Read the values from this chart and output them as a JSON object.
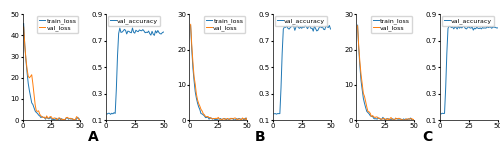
{
  "n_epochs": 50,
  "subplots": [
    {
      "type": "loss",
      "label_A": "train_loss",
      "label_B": "val_loss",
      "ylim": [
        0,
        50
      ],
      "yticks": [
        0,
        10,
        20,
        30,
        40,
        50
      ],
      "xlim": [
        0,
        50
      ],
      "train_y0": 45,
      "val_y0": 43,
      "val_bump_x": 8,
      "val_bump_y": 35,
      "decay_fast": 12,
      "floor": 0.5,
      "noise_train": 0.2,
      "noise_val": 0.4,
      "color_train": "#1f77b4",
      "color_val": "#ff7f0e"
    },
    {
      "type": "accuracy",
      "label": "val_accuracy",
      "ylim": [
        0.1,
        0.9
      ],
      "yticks": [
        0.1,
        0.3,
        0.5,
        0.7,
        0.9
      ],
      "xlim": [
        0,
        50
      ],
      "low_val": 0.15,
      "jump_at": 9,
      "high_val": 0.77,
      "noise_high": 0.015,
      "color": "#1f77b4"
    },
    {
      "type": "loss",
      "label_A": "train_loss",
      "label_B": "val_loss",
      "ylim": [
        0,
        30
      ],
      "yticks": [
        0,
        10,
        20,
        30
      ],
      "xlim": [
        0,
        50
      ],
      "train_y0": 27,
      "val_y0": 27,
      "val_bump_x": -1,
      "val_bump_y": 0,
      "decay_fast": 15,
      "floor": 0.3,
      "noise_train": 0.15,
      "noise_val": 0.2,
      "color_train": "#1f77b4",
      "color_val": "#ff7f0e"
    },
    {
      "type": "accuracy",
      "label": "val_accuracy",
      "ylim": [
        0.1,
        0.9
      ],
      "yticks": [
        0.1,
        0.3,
        0.5,
        0.7,
        0.9
      ],
      "xlim": [
        0,
        50
      ],
      "low_val": 0.15,
      "jump_at": 7,
      "high_val": 0.8,
      "noise_high": 0.012,
      "color": "#1f77b4"
    },
    {
      "type": "loss",
      "label_A": "train_loss",
      "label_B": "val_loss",
      "ylim": [
        0,
        30
      ],
      "yticks": [
        0,
        10,
        20,
        30
      ],
      "xlim": [
        0,
        50
      ],
      "train_y0": 27,
      "val_y0": 27,
      "val_bump_x": -1,
      "val_bump_y": 0,
      "decay_fast": 15,
      "floor": 0.3,
      "noise_train": 0.15,
      "noise_val": 0.2,
      "color_train": "#1f77b4",
      "color_val": "#ff7f0e"
    },
    {
      "type": "accuracy",
      "label": "val_accuracy",
      "ylim": [
        0.1,
        0.9
      ],
      "yticks": [
        0.1,
        0.3,
        0.5,
        0.7,
        0.9
      ],
      "xlim": [
        0,
        50
      ],
      "low_val": 0.15,
      "jump_at": 5,
      "high_val": 0.8,
      "noise_high": 0.007,
      "color": "#1f77b4"
    }
  ],
  "labels": [
    "A",
    "B",
    "C"
  ],
  "label_fontsize": 10,
  "tick_fontsize": 5,
  "legend_fontsize": 4.5,
  "linewidth": 0.7
}
